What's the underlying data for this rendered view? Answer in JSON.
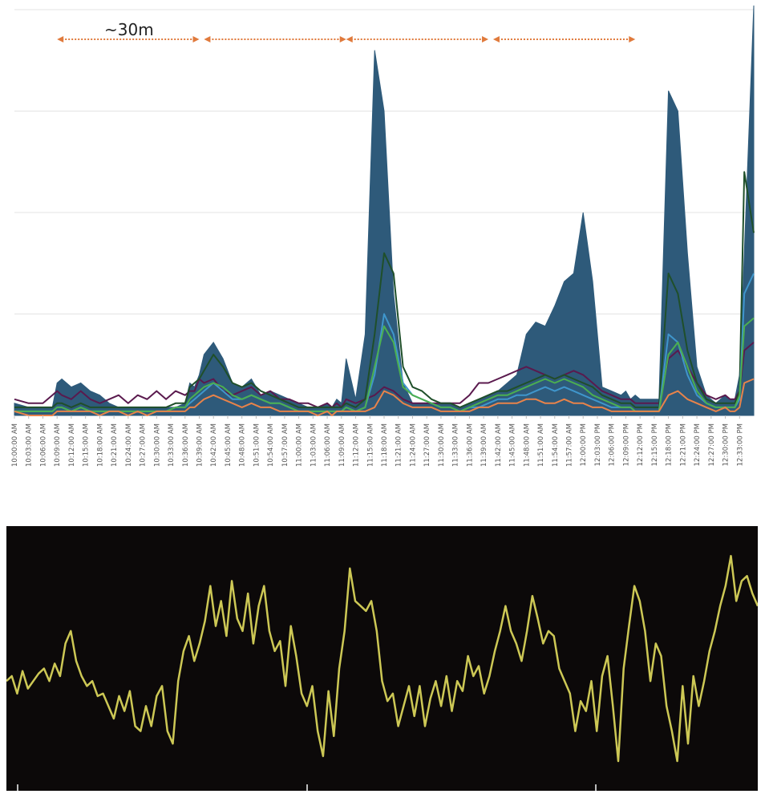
{
  "chart_data": [
    {
      "type": "area",
      "title": "",
      "xlabel": "",
      "ylabel": "",
      "grid": true,
      "legend": "none",
      "x_tick_labels": [
        "10:00:00 AM",
        "10:03:00 AM",
        "10:06:00 AM",
        "10:09:00 AM",
        "10:12:00 AM",
        "10:15:00 AM",
        "10:18:00 AM",
        "10:21:00 AM",
        "10:24:00 AM",
        "10:27:00 AM",
        "10:30:00 AM",
        "10:33:00 AM",
        "10:36:00 AM",
        "10:39:00 AM",
        "10:42:00 AM",
        "10:45:00 AM",
        "10:48:00 AM",
        "10:51:00 AM",
        "10:54:00 AM",
        "10:57:00 AM",
        "11:00:00 AM",
        "11:03:00 AM",
        "11:06:00 AM",
        "11:09:00 AM",
        "11:12:00 AM",
        "11:15:00 AM",
        "11:18:00 AM",
        "11:21:00 AM",
        "11:24:00 AM",
        "11:27:00 AM",
        "11:30:00 AM",
        "11:33:00 AM",
        "11:36:00 AM",
        "11:39:00 AM",
        "11:42:00 AM",
        "11:45:00 AM",
        "11:48:00 AM",
        "11:51:00 AM",
        "11:54:00 AM",
        "11:57:00 AM",
        "12:00:00 PM",
        "12:03:00 PM",
        "12:06:00 PM",
        "12:09:00 PM",
        "12:12:00 PM",
        "12:15:00 PM",
        "12:18:00 PM",
        "12:21:00 PM",
        "12:24:00 PM",
        "12:27:00 PM",
        "12:30:00 PM",
        "12:33:00 PM"
      ],
      "x_minutes": [
        0,
        3,
        6,
        8,
        9,
        10,
        12,
        14,
        16,
        18,
        20,
        22,
        24,
        26,
        28,
        30,
        32,
        34,
        36,
        37,
        38,
        39,
        40,
        42,
        44,
        46,
        48,
        50,
        52,
        54,
        56,
        58,
        60,
        62,
        64,
        66,
        67,
        68,
        69,
        70,
        72,
        74,
        76,
        78,
        80,
        82,
        84,
        86,
        88,
        90,
        92,
        94,
        96,
        98,
        100,
        102,
        104,
        106,
        108,
        110,
        112,
        114,
        116,
        118,
        120,
        122,
        124,
        126,
        128,
        129,
        130,
        131,
        132,
        134,
        136,
        138,
        140,
        142,
        144,
        146,
        148,
        150,
        151,
        152,
        153,
        154,
        156
      ],
      "y_range": [
        0,
        100
      ],
      "annotation": {
        "label": "~30m",
        "color": "#e07a3c",
        "segments": [
          [
            9,
            39
          ],
          [
            40,
            70
          ],
          [
            70,
            100
          ],
          [
            101,
            131
          ]
        ]
      },
      "series": [
        {
          "color": "#2e5a7a",
          "style": "area",
          "values": [
            3,
            2,
            2,
            2,
            8,
            9,
            7,
            8,
            6,
            5,
            3,
            2,
            2,
            2,
            2,
            2,
            2,
            2,
            3,
            8,
            7,
            10,
            15,
            18,
            14,
            8,
            7,
            9,
            5,
            6,
            5,
            4,
            3,
            2,
            2,
            3,
            2,
            4,
            3,
            14,
            4,
            20,
            90,
            75,
            30,
            8,
            3,
            3,
            3,
            3,
            3,
            2,
            3,
            4,
            5,
            6,
            8,
            10,
            20,
            23,
            22,
            27,
            33,
            35,
            50,
            33,
            7,
            6,
            5,
            6,
            4,
            5,
            4,
            4,
            4,
            80,
            75,
            40,
            12,
            5,
            3,
            5,
            4,
            4,
            10,
            40,
            101
          ]
        },
        {
          "color": "#5a1a4e",
          "style": "line",
          "values": [
            4,
            3,
            3,
            5,
            6,
            5,
            4,
            6,
            4,
            3,
            4,
            5,
            3,
            5,
            4,
            6,
            4,
            6,
            5,
            6,
            6,
            9,
            8,
            9,
            6,
            5,
            6,
            7,
            5,
            6,
            4,
            4,
            3,
            3,
            2,
            3,
            2,
            3,
            2,
            4,
            3,
            4,
            5,
            7,
            6,
            4,
            3,
            3,
            3,
            3,
            3,
            3,
            5,
            8,
            8,
            9,
            10,
            11,
            12,
            11,
            10,
            9,
            10,
            11,
            10,
            8,
            6,
            5,
            4,
            4,
            4,
            3,
            3,
            3,
            3,
            14,
            16,
            12,
            8,
            5,
            4,
            5,
            4,
            4,
            6,
            16,
            18
          ]
        },
        {
          "color": "#1f4f2a",
          "style": "line",
          "values": [
            2,
            2,
            2,
            2,
            3,
            3,
            2,
            3,
            2,
            2,
            2,
            2,
            2,
            2,
            2,
            2,
            2,
            3,
            3,
            7,
            8,
            9,
            11,
            15,
            12,
            8,
            7,
            8,
            6,
            5,
            4,
            3,
            2,
            2,
            2,
            2,
            2,
            2,
            2,
            3,
            2,
            4,
            20,
            40,
            35,
            12,
            7,
            6,
            4,
            3,
            3,
            2,
            3,
            4,
            5,
            6,
            6,
            7,
            8,
            9,
            10,
            9,
            10,
            9,
            8,
            7,
            5,
            4,
            3,
            3,
            3,
            2,
            2,
            2,
            2,
            35,
            30,
            16,
            8,
            4,
            3,
            3,
            3,
            3,
            6,
            60,
            45
          ]
        },
        {
          "color": "#3f96cc",
          "style": "line",
          "values": [
            1,
            1,
            1,
            1,
            2,
            2,
            1,
            2,
            1,
            1,
            1,
            1,
            1,
            1,
            1,
            1,
            1,
            2,
            2,
            3,
            4,
            5,
            6,
            8,
            6,
            4,
            4,
            5,
            4,
            3,
            3,
            2,
            1,
            1,
            1,
            1,
            1,
            1,
            1,
            2,
            1,
            2,
            10,
            25,
            20,
            8,
            5,
            4,
            3,
            2,
            2,
            1,
            2,
            2,
            3,
            4,
            4,
            5,
            5,
            6,
            7,
            6,
            7,
            6,
            5,
            4,
            3,
            2,
            2,
            2,
            2,
            1,
            1,
            1,
            1,
            20,
            18,
            10,
            5,
            3,
            2,
            2,
            2,
            2,
            4,
            30,
            35
          ]
        },
        {
          "color": "#4caf50",
          "style": "line",
          "values": [
            1,
            1,
            1,
            1,
            2,
            2,
            1,
            2,
            1,
            1,
            1,
            1,
            1,
            1,
            1,
            1,
            1,
            2,
            2,
            4,
            5,
            6,
            7,
            8,
            7,
            5,
            4,
            5,
            4,
            3,
            3,
            2,
            1,
            1,
            1,
            1,
            1,
            1,
            1,
            2,
            1,
            2,
            12,
            22,
            18,
            7,
            5,
            4,
            3,
            2,
            2,
            1,
            2,
            3,
            4,
            5,
            5,
            6,
            7,
            8,
            9,
            8,
            9,
            8,
            7,
            5,
            4,
            3,
            2,
            2,
            2,
            1,
            1,
            1,
            1,
            15,
            18,
            12,
            6,
            3,
            2,
            2,
            2,
            2,
            5,
            22,
            24
          ]
        },
        {
          "color": "#e8834a",
          "style": "line",
          "values": [
            1,
            0,
            0,
            0,
            1,
            1,
            1,
            1,
            1,
            0,
            1,
            1,
            0,
            1,
            0,
            1,
            1,
            1,
            1,
            2,
            2,
            3,
            4,
            5,
            4,
            3,
            2,
            3,
            2,
            2,
            1,
            1,
            1,
            1,
            0,
            1,
            0,
            1,
            1,
            1,
            1,
            1,
            2,
            6,
            5,
            3,
            2,
            2,
            2,
            1,
            1,
            1,
            1,
            2,
            2,
            3,
            3,
            3,
            4,
            4,
            3,
            3,
            4,
            3,
            3,
            2,
            2,
            1,
            1,
            1,
            1,
            1,
            1,
            1,
            1,
            5,
            6,
            4,
            3,
            2,
            1,
            2,
            1,
            1,
            2,
            8,
            9
          ]
        }
      ]
    },
    {
      "type": "line",
      "title": "",
      "xlabel": "",
      "ylabel": "",
      "grid": false,
      "legend": "none",
      "y_range": [
        0,
        100
      ],
      "series": [
        {
          "color": "#d8d35a",
          "values": [
            40,
            42,
            35,
            44,
            37,
            40,
            43,
            45,
            40,
            47,
            42,
            55,
            60,
            48,
            42,
            38,
            40,
            34,
            35,
            30,
            25,
            34,
            28,
            36,
            22,
            20,
            30,
            22,
            34,
            38,
            20,
            15,
            40,
            52,
            58,
            48,
            55,
            64,
            78,
            62,
            72,
            58,
            80,
            65,
            60,
            75,
            55,
            70,
            78,
            60,
            52,
            56,
            38,
            62,
            50,
            35,
            30,
            38,
            20,
            10,
            36,
            18,
            45,
            60,
            85,
            72,
            70,
            68,
            72,
            60,
            40,
            32,
            35,
            22,
            30,
            38,
            26,
            38,
            22,
            33,
            40,
            30,
            42,
            28,
            40,
            36,
            50,
            42,
            46,
            35,
            42,
            52,
            60,
            70,
            60,
            55,
            48,
            60,
            74,
            65,
            55,
            60,
            58,
            45,
            40,
            35,
            20,
            32,
            28,
            40,
            20,
            42,
            50,
            30,
            8,
            45,
            62,
            78,
            72,
            60,
            40,
            55,
            50,
            30,
            20,
            8,
            38,
            15,
            42,
            30,
            40,
            52,
            60,
            70,
            78,
            90,
            72,
            80,
            82,
            75,
            70
          ]
        }
      ]
    }
  ]
}
